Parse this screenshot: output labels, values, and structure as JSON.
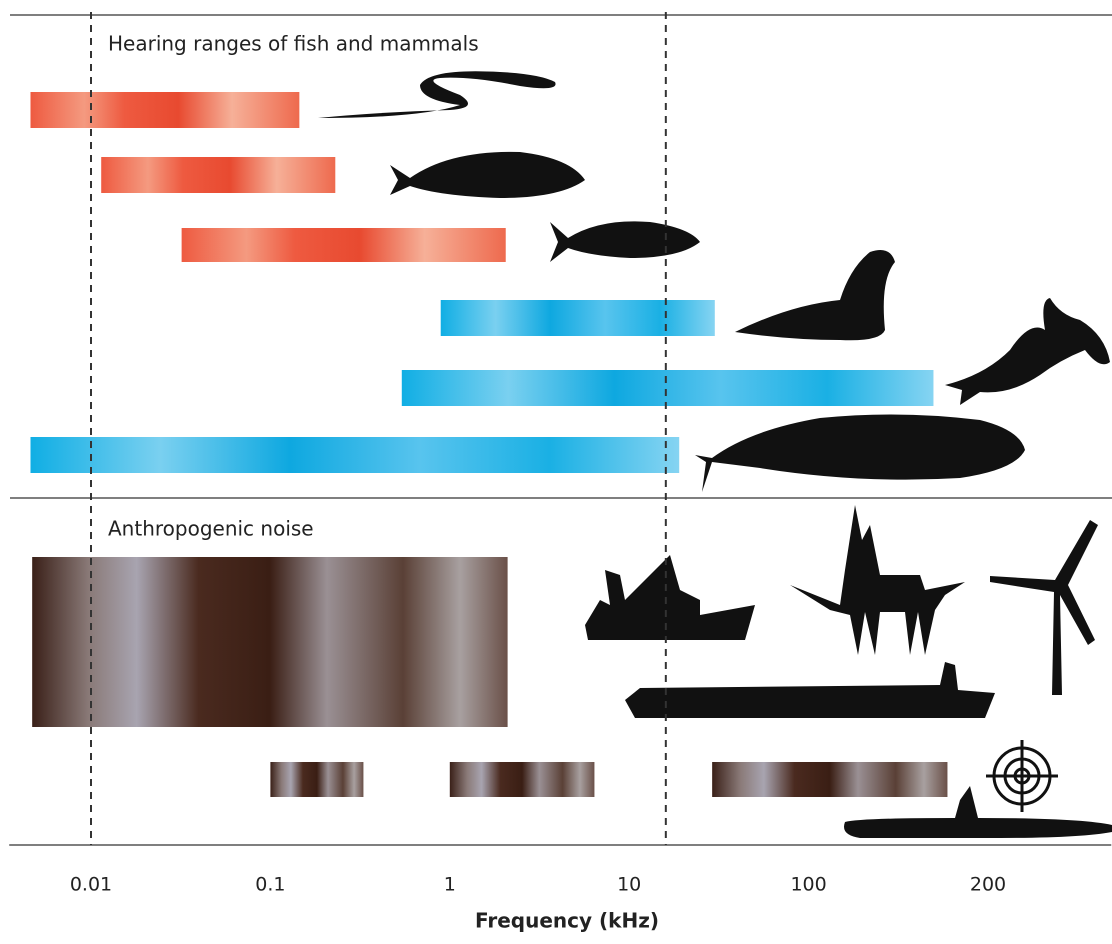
{
  "chart_data": {
    "type": "range",
    "x_label": "Frequency (kHz)",
    "xlim": [
      0.0035,
      322
    ],
    "xticks": [
      0.01,
      0.1,
      1,
      10,
      100,
      200
    ],
    "log_scale": true,
    "grid": false,
    "reference_lines": [
      0.01,
      16
    ],
    "panels": [
      {
        "title": "Hearing ranges of fish and mammals",
        "ranges": [
          [
            0.0046,
            0.145
          ],
          [
            0.0114,
            0.23
          ],
          [
            0.032,
            2.05
          ],
          [
            0.89,
            30
          ],
          [
            0.54,
            162
          ],
          [
            0.0046,
            19
          ]
        ],
        "colors": [
          "#ee6a4e",
          "#ee6a4e",
          "#ee6a4e",
          "#1ab0e4",
          "#1ab0e4",
          "#1ab0e4"
        ]
      },
      {
        "title": "Anthropogenic noise",
        "ranges": [
          [
            0.0047,
            2.1
          ],
          [
            0.1,
            0.33
          ],
          [
            1,
            6.4
          ],
          [
            29,
            171
          ]
        ],
        "colors": [
          "#4a2a1f",
          "#4a2a1f",
          "#4a2a1f",
          "#4a2a1f"
        ]
      }
    ]
  }
}
